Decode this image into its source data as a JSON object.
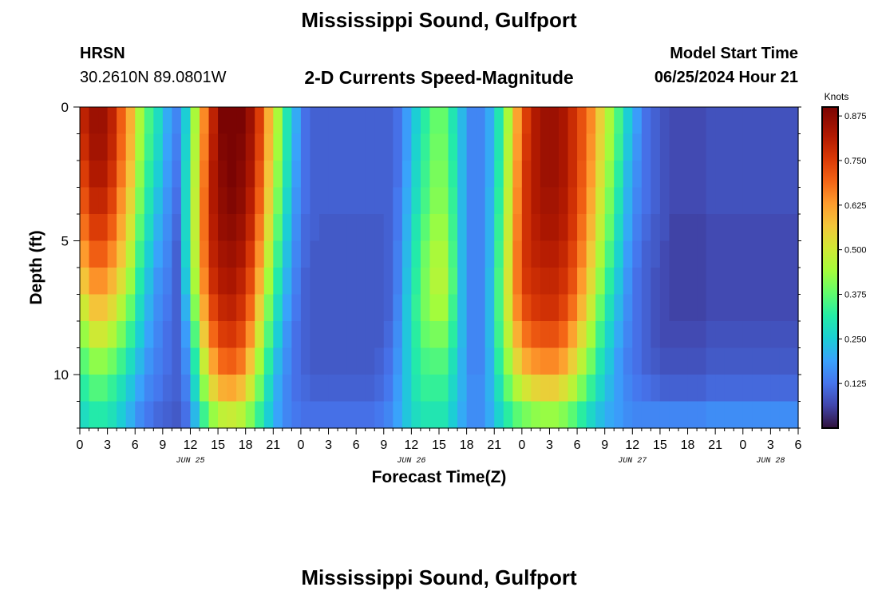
{
  "header": {
    "title": "Mississippi Sound, Gulfport",
    "station_id": "HRSN",
    "station_coords": "30.2610N  89.0801W",
    "subtitle": "2-D Currents Speed-Magnitude",
    "model_label": "Model Start Time",
    "model_time": "06/25/2024 Hour 21"
  },
  "footer": {
    "title": "Mississippi Sound, Gulfport"
  },
  "chart_data": {
    "type": "heatmap",
    "xlabel": "Forecast Time(Z)",
    "ylabel": "Depth (ft)",
    "x_hours_range": [
      0,
      78
    ],
    "x_tick_hours": [
      0,
      3,
      6,
      9,
      12,
      15,
      18,
      21,
      24,
      27,
      30,
      33,
      36,
      39,
      42,
      45,
      48,
      51,
      54,
      57,
      60,
      63,
      66,
      69,
      72,
      75,
      78
    ],
    "x_tick_labels": [
      "0",
      "3",
      "6",
      "9",
      "12",
      "15",
      "18",
      "21",
      "0",
      "3",
      "6",
      "9",
      "12",
      "15",
      "18",
      "21",
      "0",
      "3",
      "6",
      "9",
      "12",
      "15",
      "18",
      "21",
      "0",
      "3",
      "6"
    ],
    "date_labels": [
      {
        "hour": 12,
        "text": "JUN 25"
      },
      {
        "hour": 36,
        "text": "JUN 26"
      },
      {
        "hour": 60,
        "text": "JUN 27"
      },
      {
        "hour": 75,
        "text": "JUN 28"
      }
    ],
    "y_range": [
      0,
      12
    ],
    "y_tick_values": [
      0,
      5,
      10
    ],
    "y_tick_labels": [
      "0",
      "5",
      "10"
    ],
    "colorbar": {
      "label": "Knots",
      "min": 0.0,
      "max": 0.9,
      "ticks": [
        0.875,
        0.75,
        0.625,
        0.5,
        0.375,
        0.25,
        0.125
      ],
      "tick_labels": [
        "0.875",
        "0.750",
        "0.625",
        "0.500",
        "0.375",
        "0.250",
        "0.125"
      ]
    },
    "depth_levels": [
      0.5,
      1.5,
      2.5,
      3.5,
      4.5,
      5.5,
      6.5,
      7.5,
      8.5,
      9.5,
      10.5,
      11.5
    ],
    "time_step_hours": 1,
    "speed_knots": [
      [
        0.8,
        0.85,
        0.85,
        0.8,
        0.7,
        0.6,
        0.45,
        0.35,
        0.28,
        0.2,
        0.15,
        0.25,
        0.45,
        0.65,
        0.8,
        0.9,
        0.92,
        0.9,
        0.85,
        0.75,
        0.6,
        0.45,
        0.3,
        0.2,
        0.12,
        0.1,
        0.1,
        0.1,
        0.1,
        0.1,
        0.1,
        0.1,
        0.1,
        0.1,
        0.12,
        0.18,
        0.25,
        0.32,
        0.38,
        0.38,
        0.3,
        0.22,
        0.15,
        0.15,
        0.2,
        0.3,
        0.45,
        0.62,
        0.75,
        0.82,
        0.85,
        0.85,
        0.83,
        0.78,
        0.72,
        0.65,
        0.55,
        0.45,
        0.35,
        0.25,
        0.18,
        0.12,
        0.1,
        0.08,
        0.07,
        0.07,
        0.07,
        0.07,
        0.08,
        0.08,
        0.08,
        0.08,
        0.08,
        0.08,
        0.08,
        0.08,
        0.08,
        0.08
      ],
      [
        0.78,
        0.84,
        0.84,
        0.79,
        0.69,
        0.59,
        0.44,
        0.34,
        0.27,
        0.19,
        0.14,
        0.26,
        0.46,
        0.66,
        0.81,
        0.89,
        0.91,
        0.89,
        0.84,
        0.74,
        0.59,
        0.44,
        0.3,
        0.19,
        0.12,
        0.1,
        0.1,
        0.1,
        0.1,
        0.1,
        0.1,
        0.1,
        0.1,
        0.1,
        0.12,
        0.18,
        0.26,
        0.33,
        0.39,
        0.39,
        0.31,
        0.22,
        0.15,
        0.15,
        0.2,
        0.3,
        0.46,
        0.63,
        0.76,
        0.82,
        0.85,
        0.85,
        0.83,
        0.78,
        0.72,
        0.64,
        0.54,
        0.44,
        0.34,
        0.24,
        0.17,
        0.12,
        0.1,
        0.08,
        0.07,
        0.07,
        0.07,
        0.07,
        0.08,
        0.08,
        0.08,
        0.08,
        0.08,
        0.08,
        0.08,
        0.08,
        0.08,
        0.08
      ],
      [
        0.75,
        0.82,
        0.82,
        0.77,
        0.67,
        0.57,
        0.42,
        0.32,
        0.25,
        0.18,
        0.13,
        0.27,
        0.47,
        0.67,
        0.82,
        0.88,
        0.9,
        0.88,
        0.83,
        0.72,
        0.57,
        0.42,
        0.29,
        0.18,
        0.12,
        0.1,
        0.1,
        0.1,
        0.1,
        0.1,
        0.1,
        0.1,
        0.1,
        0.1,
        0.12,
        0.19,
        0.27,
        0.34,
        0.4,
        0.4,
        0.32,
        0.22,
        0.15,
        0.15,
        0.2,
        0.31,
        0.47,
        0.64,
        0.77,
        0.82,
        0.85,
        0.85,
        0.83,
        0.78,
        0.71,
        0.63,
        0.52,
        0.42,
        0.32,
        0.22,
        0.16,
        0.12,
        0.1,
        0.08,
        0.07,
        0.07,
        0.07,
        0.07,
        0.08,
        0.08,
        0.08,
        0.08,
        0.08,
        0.08,
        0.08,
        0.08,
        0.08,
        0.08
      ],
      [
        0.72,
        0.79,
        0.79,
        0.74,
        0.64,
        0.54,
        0.4,
        0.3,
        0.23,
        0.17,
        0.12,
        0.27,
        0.48,
        0.68,
        0.82,
        0.87,
        0.89,
        0.87,
        0.81,
        0.7,
        0.55,
        0.4,
        0.27,
        0.17,
        0.12,
        0.1,
        0.1,
        0.1,
        0.1,
        0.1,
        0.1,
        0.1,
        0.1,
        0.1,
        0.13,
        0.2,
        0.28,
        0.35,
        0.41,
        0.41,
        0.33,
        0.22,
        0.15,
        0.15,
        0.21,
        0.32,
        0.48,
        0.65,
        0.77,
        0.82,
        0.84,
        0.84,
        0.82,
        0.77,
        0.7,
        0.61,
        0.5,
        0.4,
        0.3,
        0.21,
        0.15,
        0.12,
        0.1,
        0.08,
        0.07,
        0.07,
        0.07,
        0.07,
        0.08,
        0.08,
        0.08,
        0.08,
        0.08,
        0.08,
        0.08,
        0.08,
        0.08,
        0.08
      ],
      [
        0.68,
        0.75,
        0.75,
        0.7,
        0.61,
        0.51,
        0.37,
        0.28,
        0.21,
        0.16,
        0.11,
        0.27,
        0.48,
        0.68,
        0.81,
        0.86,
        0.87,
        0.85,
        0.79,
        0.67,
        0.52,
        0.37,
        0.25,
        0.16,
        0.11,
        0.1,
        0.09,
        0.09,
        0.09,
        0.09,
        0.09,
        0.09,
        0.09,
        0.1,
        0.13,
        0.21,
        0.3,
        0.37,
        0.43,
        0.43,
        0.34,
        0.22,
        0.15,
        0.15,
        0.21,
        0.33,
        0.49,
        0.66,
        0.77,
        0.81,
        0.83,
        0.83,
        0.81,
        0.76,
        0.68,
        0.59,
        0.48,
        0.38,
        0.28,
        0.2,
        0.14,
        0.11,
        0.09,
        0.08,
        0.06,
        0.06,
        0.06,
        0.06,
        0.07,
        0.07,
        0.07,
        0.07,
        0.07,
        0.07,
        0.07,
        0.07,
        0.07,
        0.07
      ],
      [
        0.63,
        0.7,
        0.7,
        0.65,
        0.57,
        0.47,
        0.34,
        0.25,
        0.19,
        0.15,
        0.1,
        0.26,
        0.47,
        0.67,
        0.8,
        0.84,
        0.85,
        0.83,
        0.76,
        0.64,
        0.48,
        0.34,
        0.23,
        0.15,
        0.11,
        0.09,
        0.09,
        0.09,
        0.09,
        0.09,
        0.09,
        0.09,
        0.09,
        0.1,
        0.14,
        0.22,
        0.31,
        0.39,
        0.45,
        0.45,
        0.35,
        0.22,
        0.15,
        0.15,
        0.21,
        0.34,
        0.5,
        0.67,
        0.77,
        0.8,
        0.81,
        0.81,
        0.79,
        0.74,
        0.66,
        0.56,
        0.45,
        0.35,
        0.26,
        0.18,
        0.13,
        0.1,
        0.09,
        0.07,
        0.06,
        0.06,
        0.06,
        0.06,
        0.07,
        0.07,
        0.07,
        0.07,
        0.07,
        0.07,
        0.07,
        0.07,
        0.07,
        0.07
      ],
      [
        0.57,
        0.64,
        0.64,
        0.59,
        0.52,
        0.43,
        0.31,
        0.23,
        0.17,
        0.14,
        0.1,
        0.24,
        0.45,
        0.65,
        0.78,
        0.82,
        0.83,
        0.8,
        0.73,
        0.6,
        0.44,
        0.31,
        0.21,
        0.14,
        0.1,
        0.09,
        0.09,
        0.09,
        0.09,
        0.09,
        0.09,
        0.09,
        0.09,
        0.1,
        0.14,
        0.23,
        0.32,
        0.4,
        0.46,
        0.46,
        0.36,
        0.22,
        0.15,
        0.15,
        0.22,
        0.35,
        0.51,
        0.67,
        0.76,
        0.78,
        0.79,
        0.79,
        0.77,
        0.72,
        0.63,
        0.53,
        0.42,
        0.32,
        0.24,
        0.17,
        0.12,
        0.1,
        0.08,
        0.07,
        0.06,
        0.06,
        0.06,
        0.06,
        0.07,
        0.07,
        0.07,
        0.07,
        0.07,
        0.07,
        0.07,
        0.07,
        0.07,
        0.07
      ],
      [
        0.5,
        0.57,
        0.57,
        0.53,
        0.46,
        0.38,
        0.28,
        0.21,
        0.16,
        0.13,
        0.1,
        0.21,
        0.41,
        0.61,
        0.74,
        0.79,
        0.8,
        0.77,
        0.69,
        0.55,
        0.4,
        0.28,
        0.19,
        0.13,
        0.1,
        0.09,
        0.09,
        0.09,
        0.09,
        0.09,
        0.09,
        0.09,
        0.09,
        0.1,
        0.15,
        0.24,
        0.33,
        0.4,
        0.44,
        0.44,
        0.34,
        0.22,
        0.15,
        0.15,
        0.22,
        0.35,
        0.5,
        0.65,
        0.73,
        0.76,
        0.77,
        0.77,
        0.74,
        0.68,
        0.59,
        0.49,
        0.38,
        0.29,
        0.22,
        0.16,
        0.12,
        0.1,
        0.08,
        0.07,
        0.06,
        0.06,
        0.06,
        0.06,
        0.07,
        0.07,
        0.07,
        0.07,
        0.07,
        0.07,
        0.07,
        0.07,
        0.07,
        0.07
      ],
      [
        0.43,
        0.5,
        0.5,
        0.46,
        0.4,
        0.33,
        0.25,
        0.19,
        0.15,
        0.12,
        0.1,
        0.18,
        0.36,
        0.56,
        0.69,
        0.75,
        0.76,
        0.73,
        0.64,
        0.5,
        0.36,
        0.25,
        0.17,
        0.12,
        0.1,
        0.09,
        0.09,
        0.09,
        0.09,
        0.09,
        0.09,
        0.09,
        0.09,
        0.11,
        0.16,
        0.24,
        0.32,
        0.38,
        0.4,
        0.4,
        0.32,
        0.22,
        0.15,
        0.15,
        0.22,
        0.34,
        0.47,
        0.6,
        0.68,
        0.71,
        0.72,
        0.72,
        0.69,
        0.62,
        0.53,
        0.44,
        0.34,
        0.26,
        0.2,
        0.15,
        0.12,
        0.1,
        0.08,
        0.07,
        0.07,
        0.07,
        0.07,
        0.07,
        0.08,
        0.08,
        0.08,
        0.08,
        0.08,
        0.08,
        0.08,
        0.08,
        0.08,
        0.08
      ],
      [
        0.37,
        0.42,
        0.42,
        0.39,
        0.34,
        0.28,
        0.22,
        0.17,
        0.14,
        0.12,
        0.1,
        0.16,
        0.31,
        0.49,
        0.62,
        0.69,
        0.7,
        0.67,
        0.57,
        0.44,
        0.32,
        0.22,
        0.16,
        0.12,
        0.1,
        0.09,
        0.09,
        0.09,
        0.09,
        0.09,
        0.09,
        0.09,
        0.1,
        0.12,
        0.17,
        0.24,
        0.31,
        0.35,
        0.36,
        0.36,
        0.29,
        0.21,
        0.15,
        0.15,
        0.21,
        0.32,
        0.43,
        0.54,
        0.61,
        0.64,
        0.65,
        0.65,
        0.62,
        0.55,
        0.47,
        0.39,
        0.3,
        0.24,
        0.18,
        0.14,
        0.12,
        0.1,
        0.09,
        0.08,
        0.08,
        0.08,
        0.08,
        0.08,
        0.09,
        0.09,
        0.09,
        0.09,
        0.09,
        0.09,
        0.09,
        0.09,
        0.09,
        0.09
      ],
      [
        0.32,
        0.36,
        0.36,
        0.33,
        0.29,
        0.24,
        0.19,
        0.15,
        0.13,
        0.11,
        0.1,
        0.14,
        0.27,
        0.42,
        0.54,
        0.6,
        0.61,
        0.58,
        0.5,
        0.39,
        0.28,
        0.2,
        0.15,
        0.12,
        0.11,
        0.1,
        0.1,
        0.1,
        0.1,
        0.1,
        0.1,
        0.1,
        0.11,
        0.13,
        0.18,
        0.24,
        0.3,
        0.33,
        0.33,
        0.33,
        0.27,
        0.21,
        0.16,
        0.16,
        0.21,
        0.29,
        0.38,
        0.46,
        0.51,
        0.54,
        0.55,
        0.55,
        0.52,
        0.47,
        0.4,
        0.33,
        0.27,
        0.22,
        0.18,
        0.15,
        0.13,
        0.12,
        0.11,
        0.1,
        0.1,
        0.1,
        0.1,
        0.1,
        0.11,
        0.11,
        0.11,
        0.11,
        0.11,
        0.11,
        0.11,
        0.11,
        0.11,
        0.11
      ],
      [
        0.28,
        0.31,
        0.31,
        0.29,
        0.25,
        0.21,
        0.16,
        0.13,
        0.11,
        0.1,
        0.09,
        0.12,
        0.22,
        0.34,
        0.43,
        0.48,
        0.49,
        0.47,
        0.41,
        0.33,
        0.25,
        0.19,
        0.15,
        0.13,
        0.12,
        0.12,
        0.12,
        0.12,
        0.12,
        0.12,
        0.12,
        0.12,
        0.13,
        0.15,
        0.19,
        0.24,
        0.28,
        0.3,
        0.3,
        0.3,
        0.25,
        0.2,
        0.16,
        0.16,
        0.2,
        0.26,
        0.32,
        0.37,
        0.4,
        0.42,
        0.43,
        0.43,
        0.41,
        0.37,
        0.32,
        0.27,
        0.23,
        0.2,
        0.18,
        0.16,
        0.15,
        0.15,
        0.15,
        0.15,
        0.15,
        0.15,
        0.15,
        0.15,
        0.16,
        0.16,
        0.16,
        0.16,
        0.16,
        0.16,
        0.16,
        0.16,
        0.16,
        0.16
      ]
    ]
  }
}
